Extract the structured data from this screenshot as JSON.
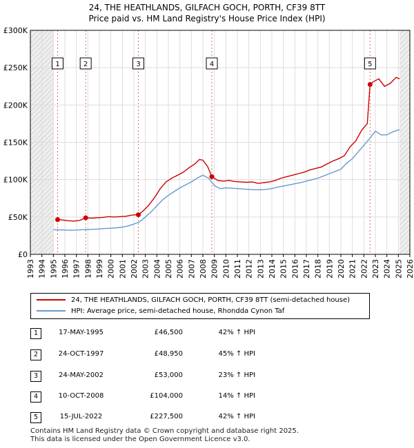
{
  "title_line1": "24, THE HEATHLANDS, GILFACH GOCH, PORTH, CF39 8TT",
  "title_line2": "Price paid vs. HM Land Registry's House Price Index (HPI)",
  "chart_data": {
    "type": "line",
    "xlim": [
      1993,
      2026
    ],
    "ylim": [
      0,
      300000
    ],
    "y_ticks": [
      {
        "value": 0,
        "label": "£0"
      },
      {
        "value": 50000,
        "label": "£50K"
      },
      {
        "value": 100000,
        "label": "£100K"
      },
      {
        "value": 150000,
        "label": "£150K"
      },
      {
        "value": 200000,
        "label": "£200K"
      },
      {
        "value": 250000,
        "label": "£250K"
      },
      {
        "value": 300000,
        "label": "£300K"
      }
    ],
    "x_ticks": [
      "1993",
      "1994",
      "1995",
      "1996",
      "1997",
      "1998",
      "1999",
      "2000",
      "2001",
      "2002",
      "2003",
      "2004",
      "2005",
      "2006",
      "2007",
      "2008",
      "2009",
      "2010",
      "2011",
      "2012",
      "2013",
      "2014",
      "2015",
      "2016",
      "2017",
      "2018",
      "2019",
      "2020",
      "2021",
      "2022",
      "2023",
      "2024",
      "2025",
      "2026"
    ],
    "hatched_ranges": [
      [
        1993,
        1995.0
      ],
      [
        2025.1,
        2026
      ]
    ],
    "grid": true,
    "series": [
      {
        "name": "24, THE HEATHLANDS, GILFACH GOCH, PORTH, CF39 8TT (semi-detached house)",
        "color": "#cc0000",
        "points": [
          [
            1995.37,
            46500
          ],
          [
            1995.8,
            46000
          ],
          [
            1996.3,
            45000
          ],
          [
            1996.8,
            44500
          ],
          [
            1997.3,
            45500
          ],
          [
            1997.81,
            48950
          ],
          [
            1998.3,
            48500
          ],
          [
            1998.8,
            49000
          ],
          [
            1999.3,
            49500
          ],
          [
            1999.8,
            50500
          ],
          [
            2000.3,
            50000
          ],
          [
            2000.8,
            50500
          ],
          [
            2001.3,
            51000
          ],
          [
            2001.8,
            52500
          ],
          [
            2002.39,
            53000
          ],
          [
            2002.8,
            58000
          ],
          [
            2003.3,
            66000
          ],
          [
            2003.8,
            76000
          ],
          [
            2004.3,
            88000
          ],
          [
            2004.8,
            97000
          ],
          [
            2005.3,
            102000
          ],
          [
            2005.8,
            106000
          ],
          [
            2006.3,
            110000
          ],
          [
            2006.8,
            116000
          ],
          [
            2007.3,
            121000
          ],
          [
            2007.7,
            127000
          ],
          [
            2008.0,
            126000
          ],
          [
            2008.4,
            118000
          ],
          [
            2008.78,
            104000
          ],
          [
            2009.3,
            99000
          ],
          [
            2009.8,
            98000
          ],
          [
            2010.3,
            99000
          ],
          [
            2010.8,
            97500
          ],
          [
            2011.3,
            97000
          ],
          [
            2011.8,
            96500
          ],
          [
            2012.3,
            97000
          ],
          [
            2012.8,
            95000
          ],
          [
            2013.3,
            96000
          ],
          [
            2013.8,
            97000
          ],
          [
            2014.3,
            99000
          ],
          [
            2014.8,
            102000
          ],
          [
            2015.3,
            104000
          ],
          [
            2015.8,
            106000
          ],
          [
            2016.3,
            108000
          ],
          [
            2016.8,
            110000
          ],
          [
            2017.3,
            113000
          ],
          [
            2017.8,
            115000
          ],
          [
            2018.3,
            117000
          ],
          [
            2018.8,
            121000
          ],
          [
            2019.3,
            125000
          ],
          [
            2019.8,
            128000
          ],
          [
            2020.3,
            132000
          ],
          [
            2020.8,
            144000
          ],
          [
            2021.3,
            152000
          ],
          [
            2021.8,
            166000
          ],
          [
            2022.3,
            175000
          ],
          [
            2022.54,
            227500
          ],
          [
            2022.8,
            231000
          ],
          [
            2023.3,
            235000
          ],
          [
            2023.8,
            225000
          ],
          [
            2024.3,
            229000
          ],
          [
            2024.8,
            237000
          ],
          [
            2025.1,
            235000
          ]
        ]
      },
      {
        "name": "HPI: Average price, semi-detached house, Rhondda Cynon Taf",
        "color": "#6699cc",
        "points": [
          [
            1995.0,
            33000
          ],
          [
            1995.5,
            32800
          ],
          [
            1996.0,
            32500
          ],
          [
            1996.5,
            32200
          ],
          [
            1997.0,
            32500
          ],
          [
            1997.5,
            33000
          ],
          [
            1998.0,
            33200
          ],
          [
            1998.5,
            33500
          ],
          [
            1999.0,
            34000
          ],
          [
            1999.5,
            34500
          ],
          [
            2000.0,
            35000
          ],
          [
            2000.5,
            35500
          ],
          [
            2001.0,
            36500
          ],
          [
            2001.5,
            38000
          ],
          [
            2002.0,
            40500
          ],
          [
            2002.5,
            43500
          ],
          [
            2003.0,
            50000
          ],
          [
            2003.5,
            57000
          ],
          [
            2004.0,
            65000
          ],
          [
            2004.5,
            73000
          ],
          [
            2005.0,
            79000
          ],
          [
            2005.5,
            84000
          ],
          [
            2006.0,
            89000
          ],
          [
            2006.5,
            93000
          ],
          [
            2007.0,
            97000
          ],
          [
            2007.5,
            102000
          ],
          [
            2008.0,
            106000
          ],
          [
            2008.5,
            102000
          ],
          [
            2009.0,
            92000
          ],
          [
            2009.5,
            88000
          ],
          [
            2010.0,
            89000
          ],
          [
            2010.5,
            88500
          ],
          [
            2011.0,
            88000
          ],
          [
            2011.5,
            87500
          ],
          [
            2012.0,
            87000
          ],
          [
            2012.5,
            86500
          ],
          [
            2013.0,
            86500
          ],
          [
            2013.5,
            87000
          ],
          [
            2014.0,
            88000
          ],
          [
            2014.5,
            90000
          ],
          [
            2015.0,
            91500
          ],
          [
            2015.5,
            93000
          ],
          [
            2016.0,
            94500
          ],
          [
            2016.5,
            96000
          ],
          [
            2017.0,
            98000
          ],
          [
            2017.5,
            100000
          ],
          [
            2018.0,
            102000
          ],
          [
            2018.5,
            105000
          ],
          [
            2019.0,
            108000
          ],
          [
            2019.5,
            111000
          ],
          [
            2020.0,
            114000
          ],
          [
            2020.5,
            122000
          ],
          [
            2021.0,
            128000
          ],
          [
            2021.5,
            137000
          ],
          [
            2022.0,
            146000
          ],
          [
            2022.5,
            155000
          ],
          [
            2023.0,
            165000
          ],
          [
            2023.5,
            160000
          ],
          [
            2024.0,
            160000
          ],
          [
            2024.5,
            164000
          ],
          [
            2025.1,
            167000
          ]
        ]
      }
    ],
    "markers": [
      {
        "label": "1",
        "x": 1995.37,
        "y": 46500
      },
      {
        "label": "2",
        "x": 1997.81,
        "y": 48950
      },
      {
        "label": "3",
        "x": 2002.39,
        "y": 53000
      },
      {
        "label": "4",
        "x": 2008.78,
        "y": 104000
      },
      {
        "label": "5",
        "x": 2022.54,
        "y": 227500
      }
    ]
  },
  "legend": {
    "items": [
      {
        "label": "24, THE HEATHLANDS, GILFACH GOCH, PORTH, CF39 8TT (semi-detached house)",
        "color": "#cc0000"
      },
      {
        "label": "HPI: Average price, semi-detached house, Rhondda Cynon Taf",
        "color": "#6699cc"
      }
    ]
  },
  "transactions": [
    {
      "num": "1",
      "date": "17-MAY-1995",
      "price": "£46,500",
      "hpi": "42% ↑ HPI"
    },
    {
      "num": "2",
      "date": "24-OCT-1997",
      "price": "£48,950",
      "hpi": "45% ↑ HPI"
    },
    {
      "num": "3",
      "date": "24-MAY-2002",
      "price": "£53,000",
      "hpi": "23% ↑ HPI"
    },
    {
      "num": "4",
      "date": "10-OCT-2008",
      "price": "£104,000",
      "hpi": "14% ↑ HPI"
    },
    {
      "num": "5",
      "date": "15-JUL-2022",
      "price": "£227,500",
      "hpi": "42% ↑ HPI"
    }
  ],
  "footer": {
    "line1": "Contains HM Land Registry data © Crown copyright and database right 2025.",
    "line2": "This data is licensed under the Open Government Licence v3.0."
  }
}
